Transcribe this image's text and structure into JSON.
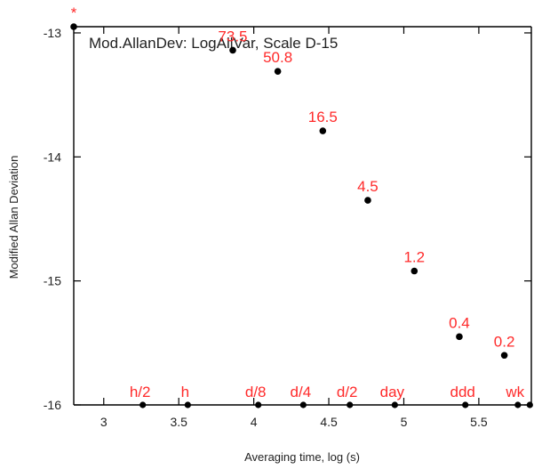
{
  "chart_data": {
    "type": "scatter",
    "title": "Mod.AllanDev: LogAllVar, Scale D-15",
    "xlabel": "Averaging time, log (s)",
    "ylabel": "Modified Allan Deviation",
    "xlim": [
      2.8,
      5.85
    ],
    "ylim": [
      -16.0,
      -12.95
    ],
    "x_ticks": [
      3,
      3.5,
      4,
      4.5,
      5,
      5.5
    ],
    "x_tick_labels": [
      "3",
      "3.5",
      "4",
      "4.5",
      "5",
      "5.5"
    ],
    "y_ticks": [
      -13,
      -14,
      -15,
      -16
    ],
    "y_tick_labels": [
      "-13",
      "-14",
      "-15",
      "-16"
    ],
    "series": [
      {
        "points": [
          {
            "x": 2.8,
            "y": -12.95,
            "label": "*"
          },
          {
            "x": 3.86,
            "y": -13.14,
            "label": "73.5"
          },
          {
            "x": 4.16,
            "y": -13.31,
            "label": "50.8"
          },
          {
            "x": 4.46,
            "y": -13.79,
            "label": "16.5"
          },
          {
            "x": 4.76,
            "y": -14.35,
            "label": "4.5"
          },
          {
            "x": 5.07,
            "y": -14.92,
            "label": "1.2"
          },
          {
            "x": 5.37,
            "y": -15.45,
            "label": "0.4"
          },
          {
            "x": 5.67,
            "y": -15.6,
            "label": "0.2"
          }
        ]
      }
    ],
    "time_markers": [
      {
        "x": 3.26,
        "label": "h/2"
      },
      {
        "x": 3.56,
        "label": "h"
      },
      {
        "x": 4.03,
        "label": "d/8"
      },
      {
        "x": 4.33,
        "label": "d/4"
      },
      {
        "x": 4.64,
        "label": "d/2"
      },
      {
        "x": 4.94,
        "label": "day"
      },
      {
        "x": 5.41,
        "label": "ddd"
      },
      {
        "x": 5.76,
        "label": "wk"
      },
      {
        "x": 5.84,
        "label": ""
      }
    ],
    "colors": {
      "point": "#000000",
      "label": "#ff2a2a",
      "axis": "#000000",
      "text": "#222222"
    }
  }
}
